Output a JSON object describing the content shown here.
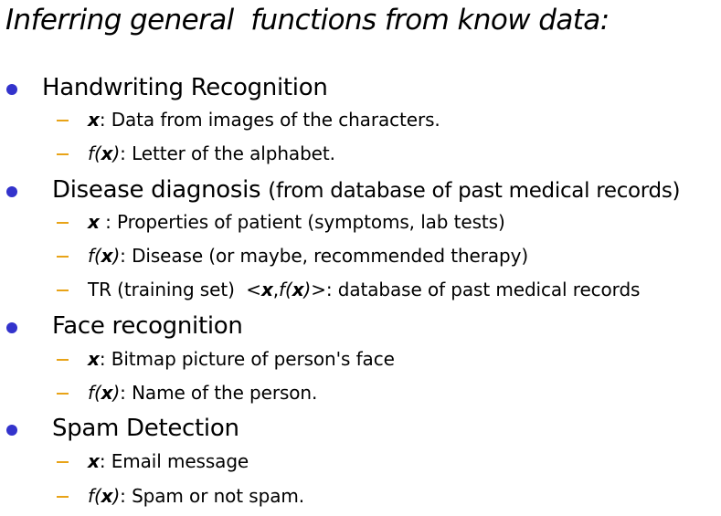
{
  "slide": {
    "title": "Inferring general  functions from know data:",
    "sections": [
      {
        "heading": "Handwriting Recognition",
        "items": [
          {
            "var": "x",
            "text": ": Data from images of the characters."
          },
          {
            "fn": "f(",
            "var": "x",
            "close": ")",
            "text": ": Letter of the alphabet."
          }
        ]
      },
      {
        "heading": "Disease diagnosis ",
        "heading_note": "(from database of past medical records)",
        "items": [
          {
            "var": "x",
            "text": " : Properties of patient (symptoms, lab tests)"
          },
          {
            "fn": "f(",
            "var": "x",
            "close": ")",
            "text": ": Disease (or maybe, recommended therapy)"
          },
          {
            "prefix": "TR (training set)  <",
            "var": "x",
            "sep": ",",
            "fn": "f(",
            "var2": "x",
            "close": ")",
            "text": ">: database of past medical records"
          }
        ]
      },
      {
        "heading": "Face recognition",
        "items": [
          {
            "var": "x",
            "text": ": Bitmap picture of person's face"
          },
          {
            "fn": "f(",
            "var": "x",
            "close": ")",
            "text": ": Name of the person."
          }
        ]
      },
      {
        "heading": "Spam Detection",
        "items": [
          {
            "var": "x",
            "text": ": Email message"
          },
          {
            "fn": "f(",
            "var": "x",
            "close": ")",
            "text": ": Spam or not spam."
          }
        ]
      }
    ]
  },
  "colors": {
    "bullet": "#3333cc",
    "dash": "#e8a317"
  }
}
